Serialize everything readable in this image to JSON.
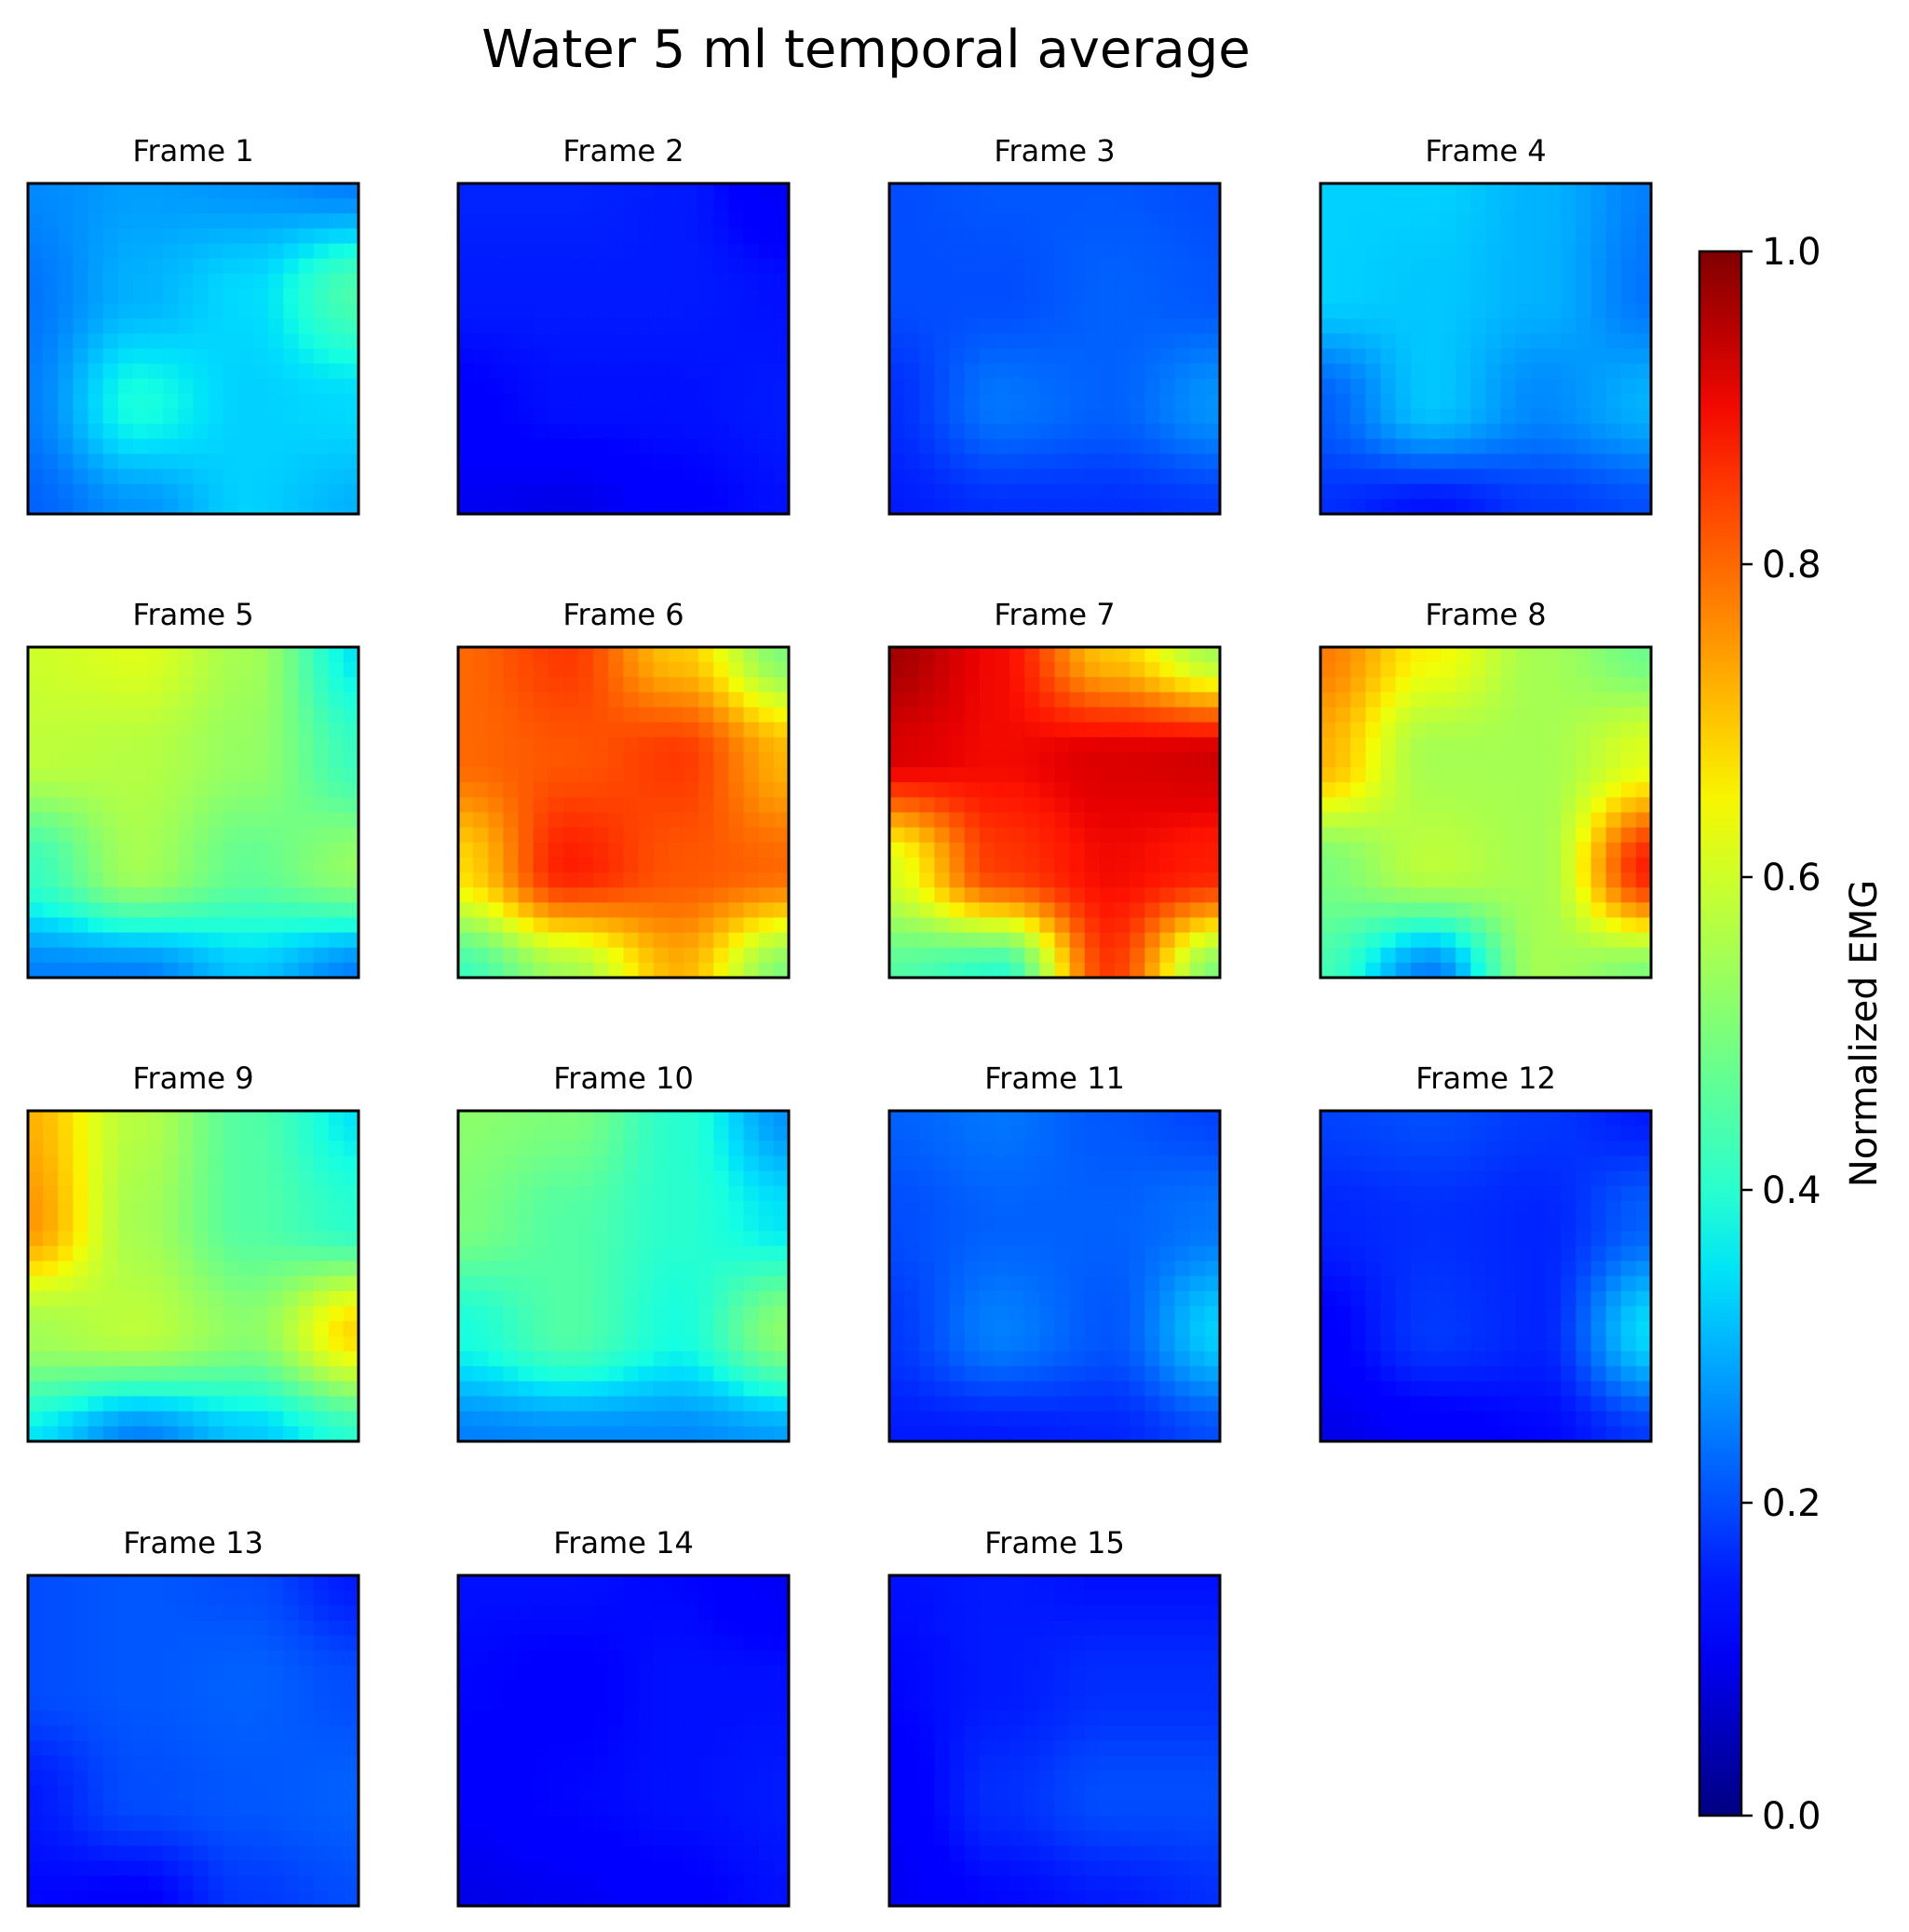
{
  "chart_data": {
    "type": "heatmap",
    "title": "Water 5 ml temporal average",
    "colormap": "jet",
    "vmin": 0.0,
    "vmax": 1.0,
    "colorbar": {
      "label": "Normalized EMG",
      "ticks": [
        "0.0",
        "0.2",
        "0.4",
        "0.6",
        "0.8",
        "1.0"
      ],
      "tick_values": [
        0.0,
        0.2,
        0.4,
        0.6,
        0.8,
        1.0
      ],
      "placement": "right"
    },
    "grid_layout": {
      "rows": 4,
      "cols": 4
    },
    "frames": [
      {
        "label": "Frame 1",
        "grid": [
          [
            0.26,
            0.28,
            0.27,
            0.25
          ],
          [
            0.24,
            0.3,
            0.34,
            0.44
          ],
          [
            0.25,
            0.38,
            0.33,
            0.34
          ],
          [
            0.22,
            0.27,
            0.33,
            0.3
          ]
        ]
      },
      {
        "label": "Frame 2",
        "grid": [
          [
            0.16,
            0.16,
            0.15,
            0.1
          ],
          [
            0.15,
            0.15,
            0.15,
            0.14
          ],
          [
            0.12,
            0.14,
            0.14,
            0.15
          ],
          [
            0.1,
            0.09,
            0.12,
            0.14
          ]
        ]
      },
      {
        "label": "Frame 3",
        "grid": [
          [
            0.2,
            0.21,
            0.21,
            0.2
          ],
          [
            0.2,
            0.2,
            0.22,
            0.21
          ],
          [
            0.17,
            0.24,
            0.22,
            0.27
          ],
          [
            0.15,
            0.17,
            0.17,
            0.18
          ]
        ]
      },
      {
        "label": "Frame 4",
        "grid": [
          [
            0.33,
            0.33,
            0.3,
            0.25
          ],
          [
            0.33,
            0.32,
            0.3,
            0.24
          ],
          [
            0.22,
            0.32,
            0.26,
            0.3
          ],
          [
            0.17,
            0.14,
            0.18,
            0.2
          ]
        ]
      },
      {
        "label": "Frame 5",
        "grid": [
          [
            0.6,
            0.62,
            0.55,
            0.35
          ],
          [
            0.58,
            0.57,
            0.53,
            0.42
          ],
          [
            0.42,
            0.55,
            0.47,
            0.53
          ],
          [
            0.25,
            0.25,
            0.32,
            0.25
          ]
        ]
      },
      {
        "label": "Frame 6",
        "grid": [
          [
            0.8,
            0.85,
            0.7,
            0.5
          ],
          [
            0.8,
            0.82,
            0.85,
            0.72
          ],
          [
            0.68,
            0.88,
            0.82,
            0.8
          ],
          [
            0.42,
            0.55,
            0.72,
            0.5
          ]
        ]
      },
      {
        "label": "Frame 7",
        "grid": [
          [
            0.97,
            0.9,
            0.7,
            0.55
          ],
          [
            0.92,
            0.9,
            0.92,
            0.93
          ],
          [
            0.62,
            0.85,
            0.9,
            0.88
          ],
          [
            0.45,
            0.4,
            0.85,
            0.5
          ]
        ]
      },
      {
        "label": "Frame 8",
        "grid": [
          [
            0.78,
            0.65,
            0.55,
            0.48
          ],
          [
            0.72,
            0.55,
            0.55,
            0.62
          ],
          [
            0.5,
            0.58,
            0.55,
            0.88
          ],
          [
            0.43,
            0.25,
            0.55,
            0.5
          ]
        ]
      },
      {
        "label": "Frame 9",
        "grid": [
          [
            0.72,
            0.57,
            0.45,
            0.35
          ],
          [
            0.75,
            0.55,
            0.45,
            0.4
          ],
          [
            0.55,
            0.58,
            0.52,
            0.68
          ],
          [
            0.35,
            0.25,
            0.32,
            0.4
          ]
        ]
      },
      {
        "label": "Frame 10",
        "grid": [
          [
            0.52,
            0.5,
            0.4,
            0.27
          ],
          [
            0.5,
            0.45,
            0.4,
            0.35
          ],
          [
            0.38,
            0.45,
            0.38,
            0.52
          ],
          [
            0.25,
            0.26,
            0.26,
            0.28
          ]
        ]
      },
      {
        "label": "Frame 11",
        "grid": [
          [
            0.22,
            0.24,
            0.21,
            0.19
          ],
          [
            0.2,
            0.22,
            0.22,
            0.24
          ],
          [
            0.18,
            0.25,
            0.21,
            0.33
          ],
          [
            0.15,
            0.15,
            0.16,
            0.2
          ]
        ]
      },
      {
        "label": "Frame 12",
        "grid": [
          [
            0.19,
            0.2,
            0.18,
            0.15
          ],
          [
            0.16,
            0.17,
            0.16,
            0.22
          ],
          [
            0.12,
            0.18,
            0.16,
            0.34
          ],
          [
            0.09,
            0.11,
            0.13,
            0.18
          ]
        ]
      },
      {
        "label": "Frame 13",
        "grid": [
          [
            0.2,
            0.21,
            0.2,
            0.15
          ],
          [
            0.2,
            0.21,
            0.22,
            0.2
          ],
          [
            0.15,
            0.2,
            0.21,
            0.22
          ],
          [
            0.13,
            0.12,
            0.18,
            0.2
          ]
        ]
      },
      {
        "label": "Frame 14",
        "grid": [
          [
            0.14,
            0.14,
            0.13,
            0.1
          ],
          [
            0.13,
            0.12,
            0.14,
            0.14
          ],
          [
            0.11,
            0.13,
            0.14,
            0.15
          ],
          [
            0.09,
            0.1,
            0.12,
            0.14
          ]
        ]
      },
      {
        "label": "Frame 15",
        "grid": [
          [
            0.14,
            0.15,
            0.14,
            0.14
          ],
          [
            0.13,
            0.15,
            0.17,
            0.17
          ],
          [
            0.11,
            0.17,
            0.2,
            0.2
          ],
          [
            0.1,
            0.13,
            0.15,
            0.17
          ]
        ]
      }
    ]
  }
}
